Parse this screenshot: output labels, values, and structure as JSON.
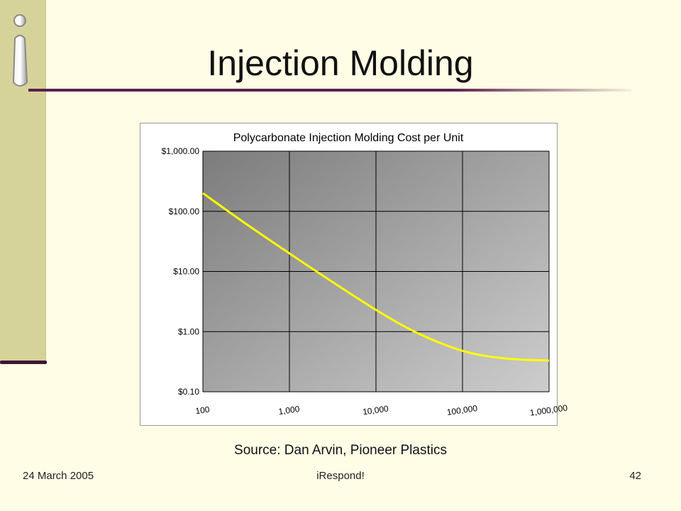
{
  "slide": {
    "title": "Injection Molding",
    "source": "Source: Dan Arvin, Pioneer Plastics",
    "footer_date": "24 March 2005",
    "footer_center": "iRespond!",
    "page_number": "42"
  },
  "colors": {
    "background": "#fffde6",
    "sidebar": "#d6d39a",
    "accent_rule": "#5a2048",
    "curve": "#ffff00"
  },
  "chart_data": {
    "type": "line",
    "title": "Polycarbonate Injection Molding Cost per Unit",
    "xlabel": "",
    "ylabel": "",
    "x_scale": "log",
    "y_scale": "log",
    "xlim": [
      100,
      1000000
    ],
    "ylim": [
      0.1,
      1000
    ],
    "x_ticks": [
      "100",
      "1,000",
      "10,000",
      "100,000",
      "1,000,000"
    ],
    "y_ticks": [
      "$1,000.00",
      "$100.00",
      "$10.00",
      "$1.00",
      "$0.10"
    ],
    "grid": true,
    "legend": "none",
    "series": [
      {
        "x": [
          100,
          300,
          1000,
          3000,
          10000,
          30000,
          100000,
          300000,
          1000000
        ],
        "values": [
          200,
          65,
          20,
          7,
          2.3,
          0.95,
          0.48,
          0.36,
          0.33
        ]
      }
    ]
  }
}
